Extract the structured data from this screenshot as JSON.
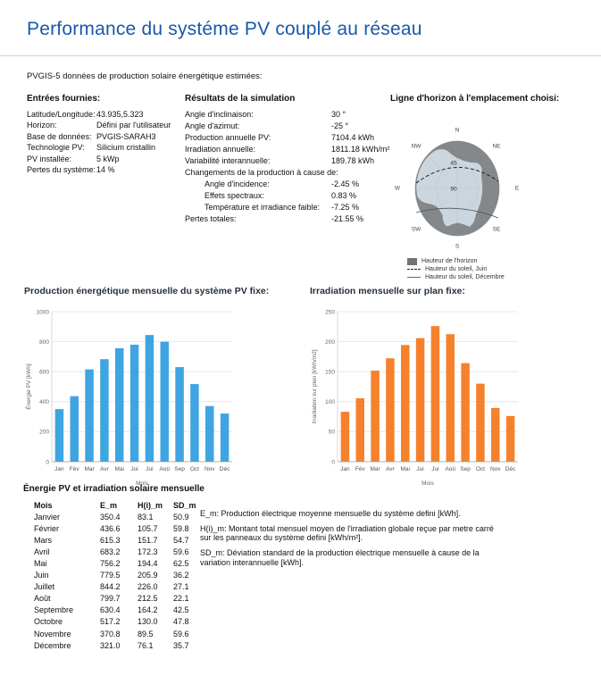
{
  "header": {
    "title": "Performance du systéme PV couplé au réseau"
  },
  "intro": "PVGIS-5 données de production solaire énergétique estimées:",
  "inputs": {
    "title": "Entrées fournies:",
    "rows": [
      {
        "label": "Latitude/Longitude:",
        "value": "43.935,5.323"
      },
      {
        "label": "Horizon:",
        "value": "Défini par l'utilisateur"
      },
      {
        "label": "Base de données:",
        "value": "PVGIS-SARAH3"
      },
      {
        "label": "Technologie PV:",
        "value": "Silicium cristallin"
      },
      {
        "label": "PV installée:",
        "value": "5 kWp"
      },
      {
        "label": "Pertes du système:",
        "value": "14 %"
      }
    ]
  },
  "results": {
    "title": "Résultats de la simulation",
    "rows": [
      {
        "label": "Angle d'inclinaison:",
        "value": "30 °"
      },
      {
        "label": "Angle d'azimut:",
        "value": "-25 °"
      },
      {
        "label": "Production annuelle PV:",
        "value": "7104.4 kWh"
      },
      {
        "label": "Irradiation annuelle:",
        "value": "1811.18 kWh/m²"
      },
      {
        "label": "Variabilité interannuelle:",
        "value": "189.78 kWh"
      },
      {
        "label": "Changements de la production à cause de:",
        "value": "",
        "full": true
      },
      {
        "label": "Angle d'incidence:",
        "value": "-2.45 %",
        "indent": true
      },
      {
        "label": "Effets spectraux:",
        "value": "0.83 %",
        "indent": true
      },
      {
        "label": "Température et irradiance faible:",
        "value": "-7.25 %",
        "indent": true
      },
      {
        "label": "Pertes totales:",
        "value": "-21.55 %"
      }
    ]
  },
  "horizon": {
    "title": "Ligne d'horizon à l'emplacement choisi:",
    "compass": [
      "N",
      "NE",
      "E",
      "SE",
      "S",
      "SW",
      "W",
      "NW"
    ],
    "radial_labels": [
      "45",
      "90"
    ],
    "legend": [
      {
        "label": "Hauteur de l'horizon",
        "swatch": "square"
      },
      {
        "label": "Hauteur du soleil, Juin",
        "swatch": "dashed"
      },
      {
        "label": "Hauteur du soleil, Décembre",
        "swatch": "solid"
      }
    ],
    "colors": {
      "sky": "#ccd6de",
      "horizon": "#84888b"
    },
    "profile": [
      [
        0,
        0.64
      ],
      [
        15,
        0.6
      ],
      [
        30,
        0.63
      ],
      [
        45,
        0.74
      ],
      [
        55,
        0.72
      ],
      [
        65,
        0.63
      ],
      [
        80,
        0.6
      ],
      [
        95,
        0.6
      ],
      [
        110,
        0.61
      ],
      [
        125,
        0.64
      ],
      [
        140,
        0.7
      ],
      [
        152,
        0.82
      ],
      [
        160,
        0.86
      ],
      [
        168,
        0.78
      ],
      [
        178,
        0.72
      ],
      [
        188,
        0.76
      ],
      [
        198,
        0.85
      ],
      [
        205,
        0.78
      ],
      [
        212,
        0.66
      ],
      [
        222,
        0.62
      ],
      [
        232,
        0.62
      ],
      [
        242,
        0.7
      ],
      [
        250,
        0.86
      ],
      [
        258,
        0.96
      ],
      [
        270,
        0.975
      ],
      [
        285,
        0.975
      ],
      [
        300,
        0.975
      ],
      [
        315,
        0.97
      ],
      [
        330,
        0.95
      ],
      [
        342,
        0.86
      ],
      [
        350,
        0.72
      ]
    ]
  },
  "chart_data": [
    {
      "type": "bar",
      "title": "Production énergétique mensuelle du système PV fixe:",
      "categories": [
        "Jan",
        "Fév",
        "Mar",
        "Avr",
        "Mai",
        "Jui",
        "Jui",
        "Aoû",
        "Sep",
        "Oct",
        "Nov",
        "Déc"
      ],
      "values": [
        350.4,
        436.6,
        615.3,
        683.2,
        756.2,
        779.5,
        844.2,
        799.7,
        630.4,
        517.2,
        370.8,
        321.0
      ],
      "xlabel": "Mois",
      "ylabel": "Énergie PV [kWh]",
      "ylim": [
        0,
        1000
      ],
      "yticks": [
        0,
        200,
        400,
        600,
        800,
        1000
      ],
      "grid": true,
      "legend_shown": false,
      "color": "#3fa5e2"
    },
    {
      "type": "bar",
      "title": "Irradiation mensuelle sur plan fixe:",
      "categories": [
        "Jan",
        "Fév",
        "Mar",
        "Avr",
        "Mai",
        "Jui",
        "Jui",
        "Aoû",
        "Sep",
        "Oct",
        "Nov",
        "Déc"
      ],
      "values": [
        83.1,
        105.7,
        151.7,
        172.3,
        194.4,
        205.9,
        226.0,
        212.5,
        164.2,
        130.0,
        89.5,
        76.1
      ],
      "xlabel": "Mois",
      "ylabel": "Irradiation sur plan [kWh/m2]",
      "ylim": [
        0,
        250
      ],
      "yticks": [
        0,
        50,
        100,
        150,
        200,
        250
      ],
      "grid": true,
      "legend_shown": false,
      "color": "#f6812c"
    }
  ],
  "table": {
    "title": "Énergie PV et irradiation solaire mensuelle",
    "headers": [
      "Mois",
      "E_m",
      "H(i)_m",
      "SD_m"
    ],
    "rows": [
      [
        "Janvier",
        "350.4",
        "83.1",
        "50.9"
      ],
      [
        "Février",
        "436.6",
        "105.7",
        "59.8"
      ],
      [
        "Mars",
        "615.3",
        "151.7",
        "54.7"
      ],
      [
        "Avril",
        "683.2",
        "172.3",
        "59.6"
      ],
      [
        "Mai",
        "756.2",
        "194.4",
        "62.5"
      ],
      [
        "Juin",
        "779.5",
        "205.9",
        "36.2"
      ],
      [
        "Juillet",
        "844.2",
        "226.0",
        "27.1"
      ],
      [
        "Août",
        "799.7",
        "212.5",
        "22.1"
      ],
      [
        "Septembre",
        "630.4",
        "164.2",
        "42.5"
      ],
      [
        "Octobre",
        "517.2",
        "130.0",
        "47.8"
      ],
      [
        "Novembre",
        "370.8",
        "89.5",
        "59.6"
      ],
      [
        "Décembre",
        "321.0",
        "76.1",
        "35.7"
      ]
    ]
  },
  "notes": [
    "E_m: Production électrique moyenne mensuelle du système defini [kWh].",
    "H(i)_m: Montant total mensuel moyen de l'irradiation globale reçue par metre carré sur les panneaux du système defini [kWh/m²].",
    "SD_m: Déviation standard de la production électrique mensuelle à cause de la variation interannuelle [kWh]."
  ]
}
